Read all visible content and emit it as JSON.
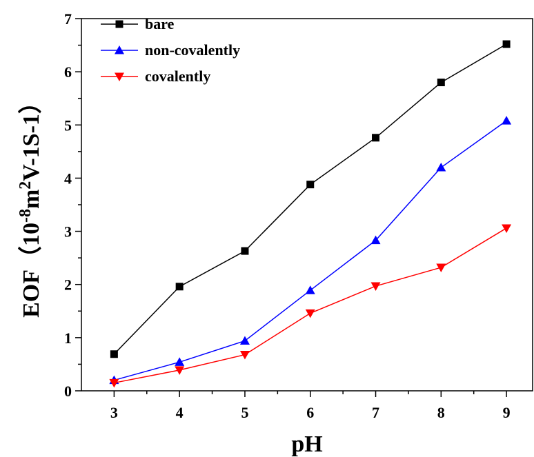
{
  "chart_data": {
    "type": "line",
    "title": "",
    "xlabel": "pH",
    "ylabel": {
      "prefix": "EOF（10",
      "sup1": "-8",
      "mid1": "m",
      "sup2": "2",
      "mid2": "V",
      "sup3": "-1",
      "mid3": "S",
      "sup4": "-1",
      "suffix": "）"
    },
    "xlim": [
      2.5,
      9.4
    ],
    "ylim": [
      0,
      7
    ],
    "xticks": [
      "3",
      "4",
      "5",
      "6",
      "7",
      "8",
      "9"
    ],
    "yticks": [
      "0",
      "1",
      "2",
      "3",
      "4",
      "5",
      "6",
      "7"
    ],
    "x": [
      3,
      4,
      5,
      6,
      7,
      8,
      9
    ],
    "legend_position": "top-left",
    "series": [
      {
        "name": "bare",
        "color": "#000000",
        "marker": "square",
        "values": [
          0.69,
          1.96,
          2.63,
          3.88,
          4.76,
          5.8,
          6.52
        ]
      },
      {
        "name": "non-covalently",
        "color": "#0000ff",
        "marker": "triangle-up",
        "values": [
          0.2,
          0.54,
          0.94,
          1.89,
          2.83,
          4.2,
          5.08
        ]
      },
      {
        "name": "covalently",
        "color": "#ff0000",
        "marker": "triangle-down",
        "values": [
          0.15,
          0.39,
          0.68,
          1.46,
          1.97,
          2.32,
          3.06
        ]
      }
    ]
  }
}
